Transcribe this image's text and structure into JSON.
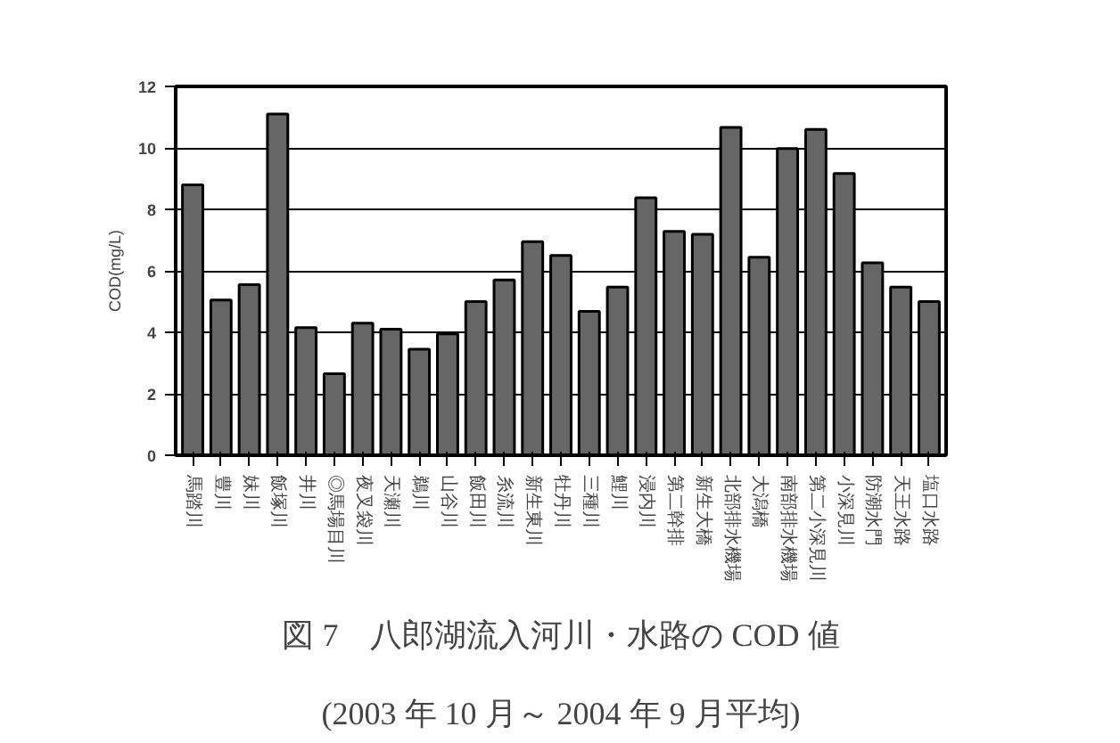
{
  "chart_data": {
    "type": "bar",
    "ylabel": "COD(mg/L)",
    "categories": [
      "馬踏川",
      "豊川",
      "妹川",
      "飯塚川",
      "井川",
      "◎馬場目川",
      "夜叉袋川",
      "天瀬川",
      "鵜川",
      "山谷川",
      "飯田川",
      "糸流川",
      "新生東川",
      "牡丹川",
      "三種川",
      "鯉川",
      "浸内川",
      "第二幹排",
      "新生大橋",
      "北部排水機場",
      "大潟橋",
      "南部排水機場",
      "第二小深見川",
      "小深見川",
      "防潮水門",
      "天王水路",
      "塩口水路"
    ],
    "values": [
      8.8,
      5.05,
      5.55,
      11.1,
      4.15,
      2.65,
      4.3,
      4.1,
      3.45,
      3.95,
      5.0,
      5.7,
      6.95,
      6.5,
      4.68,
      5.47,
      8.38,
      7.28,
      7.19,
      10.67,
      6.44,
      9.98,
      10.6,
      9.17,
      6.26,
      5.47,
      5.0
    ],
    "color": "#666666",
    "ylim": [
      0,
      12
    ],
    "yticks": [
      0,
      2,
      4,
      6,
      8,
      10,
      12
    ],
    "grid": "y",
    "annotations": [
      "図 7　八郎湖流入河川・水路の COD 値",
      "(2003 年 10 月～ 2004 年 9 月平均)"
    ]
  }
}
